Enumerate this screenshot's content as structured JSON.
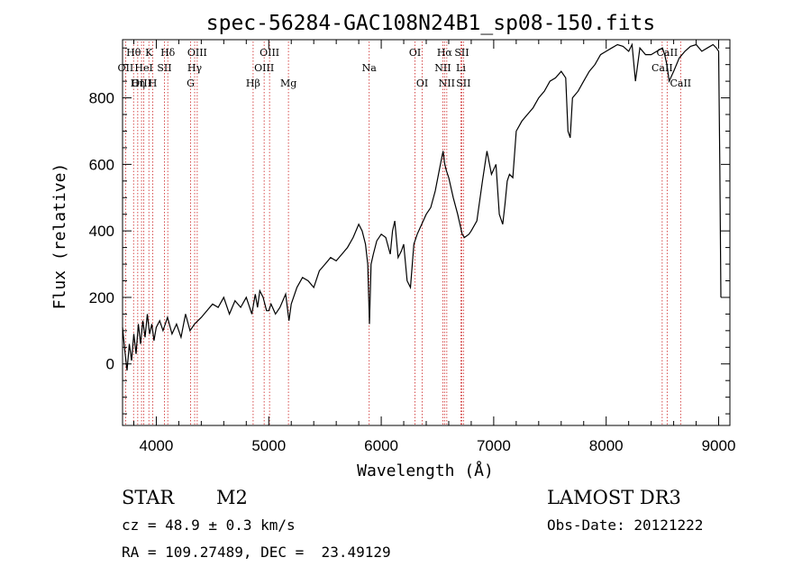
{
  "chart_data": {
    "type": "line",
    "title": "spec-56284-GAC108N24B1_sp08-150.fits",
    "xlabel": "Wavelength (Å)",
    "ylabel": "Flux (relative)",
    "xlim": [
      3700,
      9100
    ],
    "ylim": [
      -185,
      975
    ],
    "x_ticks": [
      4000,
      5000,
      6000,
      7000,
      8000,
      9000
    ],
    "y_ticks": [
      0,
      200,
      400,
      600,
      800
    ],
    "grid": false,
    "series": [
      {
        "name": "flux",
        "x": [
          3700,
          3720,
          3740,
          3760,
          3780,
          3800,
          3820,
          3840,
          3860,
          3880,
          3900,
          3920,
          3940,
          3960,
          3980,
          4000,
          4030,
          4060,
          4100,
          4140,
          4180,
          4220,
          4260,
          4300,
          4340,
          4400,
          4450,
          4500,
          4550,
          4600,
          4650,
          4700,
          4750,
          4800,
          4850,
          4880,
          4900,
          4920,
          4950,
          4980,
          5000,
          5020,
          5060,
          5100,
          5150,
          5180,
          5200,
          5250,
          5300,
          5350,
          5400,
          5450,
          5500,
          5550,
          5600,
          5650,
          5700,
          5750,
          5800,
          5830,
          5860,
          5880,
          5895,
          5910,
          5930,
          5960,
          6000,
          6040,
          6080,
          6100,
          6120,
          6150,
          6180,
          6200,
          6230,
          6260,
          6290,
          6320,
          6360,
          6400,
          6440,
          6480,
          6520,
          6550,
          6565,
          6580,
          6600,
          6640,
          6680,
          6700,
          6720,
          6740,
          6780,
          6800,
          6850,
          6900,
          6940,
          6980,
          7020,
          7050,
          7080,
          7100,
          7120,
          7140,
          7170,
          7200,
          7250,
          7300,
          7350,
          7400,
          7450,
          7500,
          7550,
          7600,
          7640,
          7660,
          7680,
          7700,
          7750,
          7800,
          7850,
          7900,
          7950,
          8000,
          8050,
          8100,
          8150,
          8200,
          8230,
          8260,
          8300,
          8350,
          8400,
          8450,
          8500,
          8520,
          8540,
          8560,
          8600,
          8650,
          8700,
          8750,
          8800,
          8850,
          8900,
          8950,
          8980,
          9000,
          9010,
          9020
        ],
        "y": [
          110,
          40,
          -20,
          60,
          10,
          90,
          30,
          120,
          60,
          130,
          80,
          150,
          90,
          120,
          70,
          110,
          130,
          100,
          140,
          90,
          120,
          80,
          150,
          100,
          120,
          140,
          160,
          180,
          170,
          200,
          150,
          190,
          170,
          200,
          150,
          210,
          170,
          220,
          200,
          160,
          160,
          180,
          150,
          170,
          210,
          130,
          180,
          230,
          260,
          250,
          230,
          280,
          300,
          320,
          310,
          330,
          350,
          380,
          420,
          400,
          360,
          300,
          120,
          300,
          330,
          370,
          390,
          380,
          330,
          400,
          430,
          320,
          340,
          360,
          250,
          230,
          360,
          390,
          420,
          450,
          470,
          520,
          590,
          640,
          600,
          580,
          560,
          500,
          450,
          420,
          390,
          380,
          390,
          400,
          430,
          550,
          640,
          570,
          600,
          450,
          420,
          480,
          550,
          570,
          560,
          700,
          730,
          750,
          770,
          800,
          820,
          850,
          860,
          880,
          860,
          700,
          680,
          800,
          820,
          850,
          880,
          900,
          930,
          940,
          950,
          960,
          955,
          940,
          960,
          850,
          950,
          930,
          930,
          940,
          950,
          930,
          900,
          850,
          880,
          920,
          940,
          955,
          960,
          940,
          950,
          960,
          950,
          940,
          600,
          200
        ]
      }
    ],
    "lines": [
      {
        "name": "Hθ",
        "wavelength": 3798,
        "row": 1
      },
      {
        "name": "OII",
        "wavelength": 3727,
        "row": 2
      },
      {
        "name": "OIII",
        "wavelength": 3869,
        "row": 3
      },
      {
        "name": "K",
        "wavelength": 3934,
        "row": 1
      },
      {
        "name": "HeI",
        "wavelength": 3889,
        "row": 2
      },
      {
        "name": "Hη",
        "wavelength": 3835,
        "row": 3
      },
      {
        "name": "H",
        "wavelength": 3969,
        "row": 3
      },
      {
        "name": "SII",
        "wavelength": 4072,
        "row": 2
      },
      {
        "name": "Hδ",
        "wavelength": 4102,
        "row": 1
      },
      {
        "name": "OIII",
        "wavelength": 4364,
        "row": 1
      },
      {
        "name": "Hγ",
        "wavelength": 4341,
        "row": 2
      },
      {
        "name": "G",
        "wavelength": 4305,
        "row": 3
      },
      {
        "name": "Hβ",
        "wavelength": 4861,
        "row": 3
      },
      {
        "name": "OIII",
        "wavelength": 5007,
        "row": 1
      },
      {
        "name": "OIII",
        "wavelength": 4959,
        "row": 2
      },
      {
        "name": "Mg",
        "wavelength": 5175,
        "row": 3
      },
      {
        "name": "Na",
        "wavelength": 5893,
        "row": 2
      },
      {
        "name": "OI",
        "wavelength": 6300,
        "row": 1
      },
      {
        "name": "OI",
        "wavelength": 6364,
        "row": 3
      },
      {
        "name": "Hα",
        "wavelength": 6563,
        "row": 1
      },
      {
        "name": "NII",
        "wavelength": 6548,
        "row": 2
      },
      {
        "name": "NII",
        "wavelength": 6583,
        "row": 3
      },
      {
        "name": "SII",
        "wavelength": 6716,
        "row": 1
      },
      {
        "name": "Li",
        "wavelength": 6708,
        "row": 2
      },
      {
        "name": "SII",
        "wavelength": 6731,
        "row": 3
      },
      {
        "name": "CaII",
        "wavelength": 8542,
        "row": 1
      },
      {
        "name": "CaII",
        "wavelength": 8498,
        "row": 2
      },
      {
        "name": "CaII",
        "wavelength": 8662,
        "row": 3
      }
    ]
  },
  "info": {
    "class_label": "STAR",
    "subclass": "M2",
    "survey": "LAMOST DR3",
    "cz": "cz = 48.9 ± 0.3 km/s",
    "obs_date": "Obs-Date: 20121222",
    "coords": "RA = 109.27489, DEC =  23.49129"
  }
}
